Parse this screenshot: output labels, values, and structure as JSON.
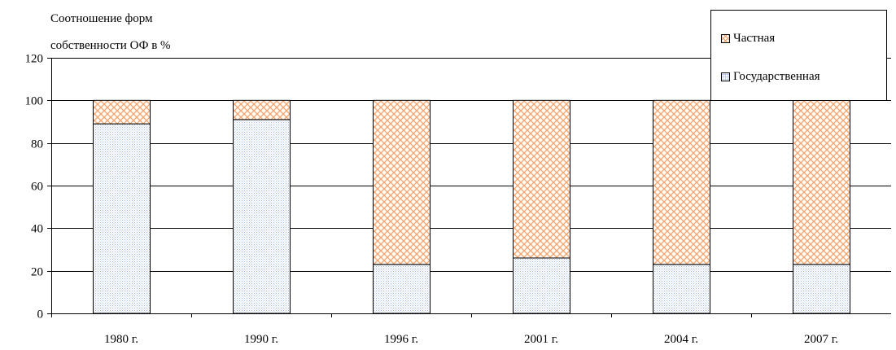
{
  "chart_data": {
    "type": "bar",
    "stacked": true,
    "categories": [
      "1980 г.",
      "1990 г.",
      "1996 г.",
      "2001 г.",
      "2004 г.",
      "2007 г."
    ],
    "series": [
      {
        "name": "Государственная",
        "values": [
          89,
          91,
          23,
          26,
          23,
          23
        ],
        "color": "#9fb6e0"
      },
      {
        "name": "Частная",
        "values": [
          11,
          9,
          77,
          74,
          77,
          77
        ],
        "color": "#f3a46b"
      }
    ],
    "title": "",
    "ylabel_lines": [
      "Соотношение форм",
      "собственности ОФ в %"
    ],
    "xlabel": "",
    "ylim": [
      0,
      120
    ],
    "yticks": [
      0,
      20,
      40,
      60,
      80,
      100,
      120
    ],
    "grid": true,
    "legend_position": "top-right",
    "legend_order": [
      "Частная",
      "Государственная"
    ]
  }
}
